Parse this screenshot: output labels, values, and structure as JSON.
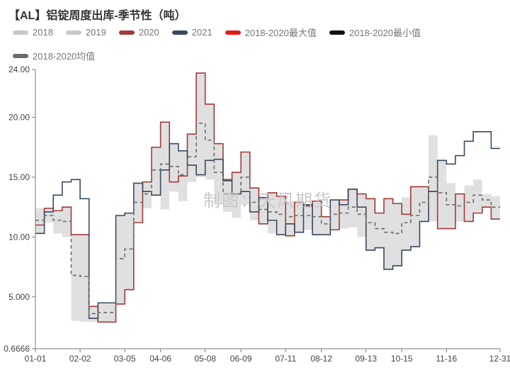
{
  "title": "【AL】铝锭周度出库-季节性（吨）",
  "title_fontsize": 16,
  "title_color": "#333333",
  "watermark": "制图：天风期货",
  "background_color": "#ffffff",
  "legend_font_size": 13,
  "legend_text_color": "#777777",
  "axis_font_size": 12,
  "axis_text_color": "#444444",
  "axis_line_color": "#7a7a7a",
  "y": {
    "min": 0.666,
    "max": 24.0,
    "ticks": [
      0.6666,
      5.0,
      10.0,
      15.0,
      20.0,
      24.0
    ],
    "tick_labels": [
      "0.6666",
      "5.000",
      "10.00",
      "15.00",
      "20.00",
      "24.00"
    ]
  },
  "x": {
    "min": 0,
    "max": 52,
    "tick_pos": [
      0,
      5,
      10,
      14,
      19,
      23,
      28,
      32,
      37,
      41,
      46,
      52
    ],
    "tick_labels": [
      "01-01",
      "02-02",
      "03-05",
      "04-06",
      "05-08",
      "06-09",
      "07-11",
      "08-12",
      "09-13",
      "10-15",
      "11-16",
      "12-31"
    ]
  },
  "band": {
    "fill": "#d6d6d6",
    "opacity": 0.75,
    "upper": [
      12.4,
      12.4,
      12.2,
      12.5,
      10.2,
      10.2,
      4.2,
      4.5,
      4.5,
      11.8,
      12.0,
      14.5,
      14.6,
      17.5,
      19.6,
      17.8,
      17.2,
      18.6,
      23.7,
      21.1,
      17.8,
      14.8,
      15.4,
      17.1,
      14.1,
      13.3,
      13.7,
      13.4,
      13.0,
      12.9,
      12.7,
      13.0,
      11.7,
      13.1,
      13.1,
      14.0,
      13.6,
      13.2,
      12.0,
      13.2,
      12.8,
      13.3,
      14.2,
      14.2,
      18.5,
      16.4,
      14.5,
      13.6,
      14.3,
      14.8,
      13.6,
      13.4,
      13.4
    ],
    "lower": [
      10.3,
      11.2,
      10.3,
      10.0,
      3.0,
      2.9,
      2.9,
      2.9,
      2.9,
      4.4,
      5.6,
      11.2,
      12.4,
      13.5,
      12.3,
      13.8,
      13.0,
      14.6,
      15.0,
      14.8,
      12.7,
      12.1,
      11.6,
      12.7,
      11.4,
      11.1,
      10.3,
      10.2,
      10.1,
      10.4,
      10.6,
      10.2,
      10.2,
      10.6,
      10.7,
      10.8,
      10.0,
      8.9,
      9.1,
      7.3,
      7.6,
      8.9,
      9.2,
      11.3,
      11.3,
      10.7,
      10.7,
      11.3,
      11.3,
      12.0,
      12.5,
      11.5,
      11.5
    ]
  },
  "series": [
    {
      "name": "2018",
      "label": "2018",
      "color": "#c8c8c8",
      "width": 3,
      "dash": "",
      "show": false,
      "data": []
    },
    {
      "name": "2019",
      "label": "2019",
      "color": "#c8c8c8",
      "width": 3,
      "dash": "",
      "show": false,
      "data": []
    },
    {
      "name": "2020",
      "label": "2020",
      "color": "#a33a3a",
      "width": 1.6,
      "dash": "",
      "data": [
        11.0,
        12.4,
        12.2,
        12.5,
        10.2,
        10.2,
        4.2,
        2.9,
        2.9,
        4.4,
        5.6,
        11.2,
        14.6,
        17.5,
        19.6,
        14.6,
        15.1,
        18.6,
        23.7,
        21.1,
        17.8,
        14.8,
        15.4,
        17.1,
        14.1,
        11.1,
        13.7,
        13.4,
        10.1,
        12.9,
        12.6,
        13.0,
        11.7,
        10.6,
        13.1,
        14.0,
        13.6,
        13.2,
        12.0,
        13.2,
        12.8,
        11.9,
        14.2,
        14.2,
        13.8,
        10.7,
        10.7,
        13.6,
        11.3,
        12.0,
        12.5,
        11.5,
        11.5
      ]
    },
    {
      "name": "2021",
      "label": "2021",
      "color": "#3a4a5e",
      "width": 1.6,
      "dash": "",
      "data": [
        10.3,
        12.1,
        13.5,
        14.6,
        14.8,
        13.2,
        3.2,
        4.5,
        4.5,
        11.8,
        12.0,
        14.5,
        13.8,
        13.5,
        15.6,
        17.8,
        17.2,
        16.0,
        15.2,
        16.4,
        16.5,
        14.7,
        13.6,
        13.8,
        12.1,
        13.3,
        11.4,
        10.2,
        11.1,
        10.4,
        12.7,
        10.2,
        10.2,
        13.1,
        12.7,
        14.0,
        12.5,
        8.9,
        9.1,
        7.3,
        7.6,
        8.9,
        9.2,
        11.3,
        13.8,
        16.4,
        16.1,
        16.8,
        18.0,
        18.8,
        18.8,
        17.4,
        17.4
      ]
    },
    {
      "name": "max18_20",
      "label": "2018-2020最大值",
      "color": "#e31a1a",
      "width": 1.4,
      "dash": "",
      "show": false,
      "data": []
    },
    {
      "name": "min18_20",
      "label": "2018-2020最小值",
      "color": "#111111",
      "width": 1.4,
      "dash": "",
      "show": false,
      "data": []
    },
    {
      "name": "mean18_20",
      "label": "2018-2020均值",
      "color": "#6b6b6b",
      "width": 1.6,
      "dash": "5,4",
      "data": [
        11.4,
        11.8,
        11.4,
        11.3,
        6.8,
        6.7,
        3.6,
        3.7,
        3.7,
        8.2,
        9.0,
        12.9,
        13.6,
        15.6,
        16.1,
        15.9,
        15.2,
        16.7,
        19.5,
        18.1,
        15.4,
        13.6,
        13.6,
        15.0,
        12.9,
        12.3,
        12.1,
        11.9,
        11.7,
        11.8,
        11.8,
        11.7,
        11.1,
        11.9,
        12.0,
        12.5,
        11.9,
        11.2,
        10.7,
        10.4,
        10.3,
        11.2,
        11.8,
        12.9,
        15.0,
        13.7,
        12.7,
        12.6,
        12.9,
        13.5,
        13.1,
        12.5,
        12.5
      ]
    }
  ]
}
